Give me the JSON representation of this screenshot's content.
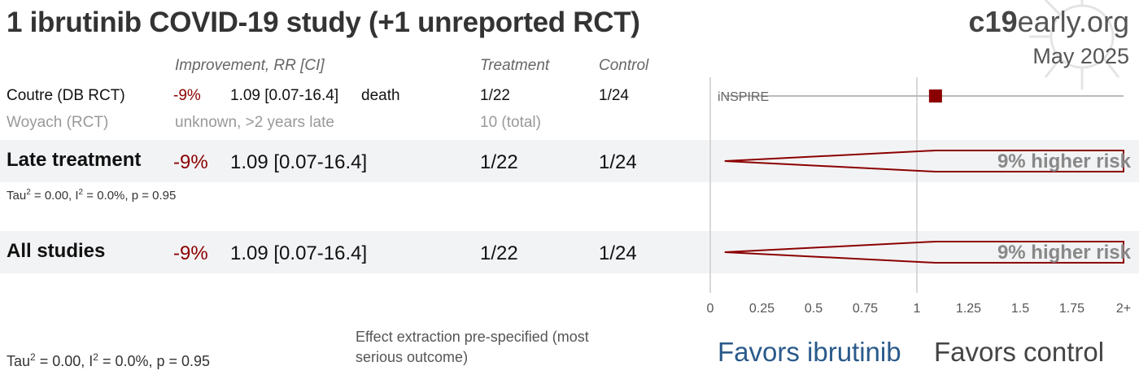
{
  "title": "1 ibrutinib COVID-19 study (+1 unreported RCT)",
  "brand": {
    "bold": "c19",
    "rest": "early.org"
  },
  "date": "May 2025",
  "headers": {
    "improvement": "Improvement, RR [CI]",
    "treatment": "Treatment",
    "control": "Control"
  },
  "studies": [
    {
      "name": "Coutre (DB RCT)",
      "improvement": "-9%",
      "rr": "1.09 [0.07-16.4]",
      "outcome": "death",
      "treatment": "1/22",
      "control": "1/24",
      "label": "iNSPIRE"
    },
    {
      "name": "Woyach (RCT)",
      "status": "unknown, >2 years late",
      "total": "10 (total)"
    }
  ],
  "groups": [
    {
      "name": "Late treatment",
      "improvement": "-9%",
      "rr": "1.09 [0.07-16.4]",
      "treatment": "1/22",
      "control": "1/24",
      "risk_label": "9% higher risk",
      "stats": {
        "tau": "Tau",
        "tau_rest": " = 0.00, I",
        "i_rest": " = 0.0%, p = 0.95",
        "sup": "2"
      }
    },
    {
      "name": "All studies",
      "improvement": "-9%",
      "rr": "1.09 [0.07-16.4]",
      "treatment": "1/22",
      "control": "1/24",
      "risk_label": "9% higher risk"
    }
  ],
  "footer": {
    "stats": {
      "tau": "Tau",
      "tau_rest": " = 0.00, I",
      "i_rest": " = 0.0%, p = 0.95",
      "sup": "2"
    },
    "note": "Effect extraction pre-specified (most serious outcome)",
    "favors_left": "Favors ibrutinib",
    "favors_right": "Favors control"
  },
  "colors": {
    "accent": "#8b0000",
    "favors_left": "#2a5a8a",
    "band": "#f2f3f5"
  },
  "chart_data": {
    "type": "forest",
    "xlim": [
      0,
      2
    ],
    "xticks": [
      0,
      0.25,
      0.5,
      0.75,
      1,
      1.25,
      1.5,
      1.75,
      2
    ],
    "xtick_labels": [
      "0",
      "0.25",
      "0.5",
      "0.75",
      "1",
      "1.25",
      "1.5",
      "1.75",
      "2+"
    ],
    "reference_line": 1,
    "points": [
      {
        "study": "iNSPIRE",
        "rr": 1.09,
        "ci_low": 0.07,
        "ci_high": 16.4
      }
    ],
    "diamonds": [
      {
        "group": "Late treatment",
        "rr": 1.09,
        "ci_low": 0.07,
        "ci_high": 16.4
      },
      {
        "group": "All studies",
        "rr": 1.09,
        "ci_low": 0.07,
        "ci_high": 16.4
      }
    ]
  }
}
